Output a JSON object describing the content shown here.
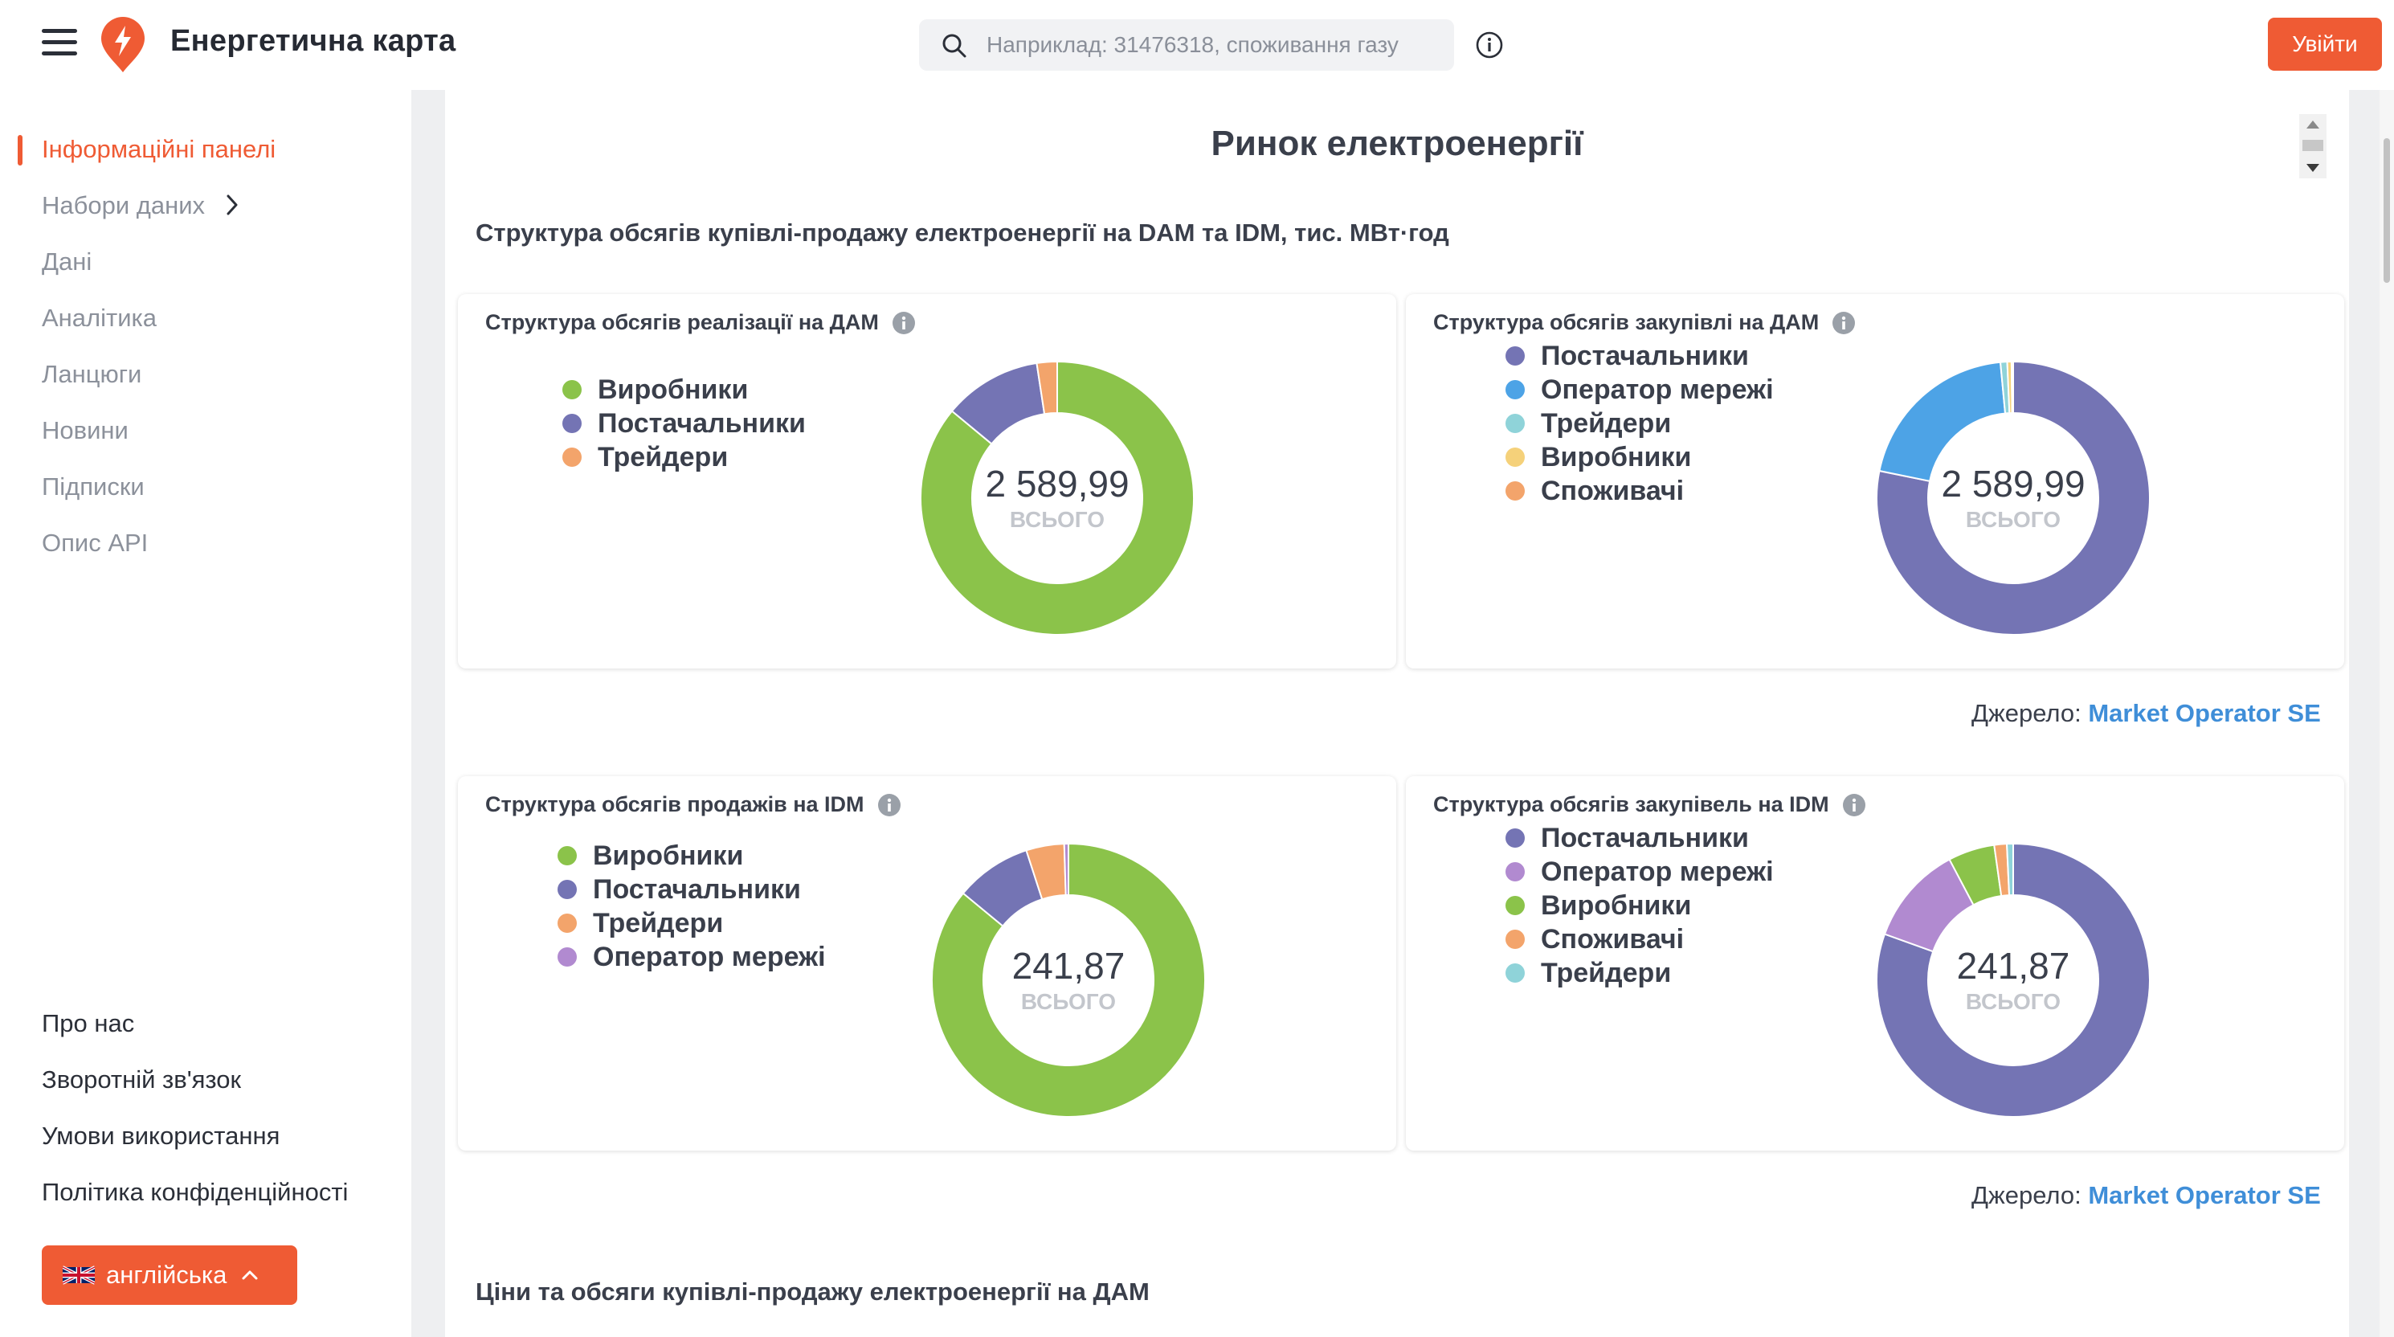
{
  "header": {
    "app_title": "Енергетична карта",
    "search_placeholder": "Наприклад: 31476318, споживання газу",
    "login_label": "Увійти",
    "brand_color": "#ef5b34"
  },
  "sidebar": {
    "nav": [
      {
        "label": "Інформаційні панелі",
        "active": true
      },
      {
        "label": "Набори даних",
        "has_submenu": true
      },
      {
        "label": "Дані"
      },
      {
        "label": "Аналітика"
      },
      {
        "label": "Ланцюги"
      },
      {
        "label": "Новини"
      },
      {
        "label": "Підписки"
      },
      {
        "label": "Опис API"
      }
    ],
    "footer": [
      {
        "label": "Про нас"
      },
      {
        "label": "Зворотній зв'язок"
      },
      {
        "label": "Умови використання"
      },
      {
        "label": "Політика конфіденційності"
      }
    ],
    "language": {
      "label": "англійська",
      "flag": "uk-flag-icon"
    }
  },
  "main": {
    "page_title": "Ринок електроенергії",
    "section1_title": "Структура обсягів купівлі-продажу електроенергії на DAM та IDM, тис. МВт·год",
    "section2_title": "Ціни та обсяги купівлі-продажу електроенергії на ДАМ",
    "source_label": "Джерело:",
    "source_link": "Market Operator SE",
    "total_label": "ВСЬОГО"
  },
  "chart_data": [
    {
      "type": "pie",
      "title": "Структура обсягів реалізації на ДАМ",
      "total": "2 589,99",
      "series": [
        {
          "name": "Виробники",
          "value": 2227.4,
          "color": "#8bc34a"
        },
        {
          "name": "Постачальники",
          "value": 300.4,
          "color": "#7474b4"
        },
        {
          "name": "Трейдери",
          "value": 62.2,
          "color": "#f3a46b"
        }
      ]
    },
    {
      "type": "pie",
      "title": "Структура обсягів закупівлі на ДАМ",
      "total": "2 589,99",
      "series": [
        {
          "name": "Постачальники",
          "value": 2025.4,
          "color": "#7474b4"
        },
        {
          "name": "Оператор мережі",
          "value": 525.8,
          "color": "#4da3e6"
        },
        {
          "name": "Трейдери",
          "value": 20.7,
          "color": "#8fd3d9"
        },
        {
          "name": "Виробники",
          "value": 13.0,
          "color": "#f5d17a"
        },
        {
          "name": "Споживачі",
          "value": 5.1,
          "color": "#f3a46b"
        }
      ]
    },
    {
      "type": "pie",
      "title": "Структура обсягів продажів на IDM",
      "total": "241,87",
      "series": [
        {
          "name": "Виробники",
          "value": 208.0,
          "color": "#8bc34a"
        },
        {
          "name": "Постачальники",
          "value": 21.8,
          "color": "#7474b4"
        },
        {
          "name": "Трейдери",
          "value": 10.9,
          "color": "#f3a46b"
        },
        {
          "name": "Оператор мережі",
          "value": 1.2,
          "color": "#b18ad0"
        }
      ]
    },
    {
      "type": "pie",
      "title": "Структура обсягів закупівель на IDM",
      "total": "241,87",
      "series": [
        {
          "name": "Постачальники",
          "value": 194.7,
          "color": "#7474b4"
        },
        {
          "name": "Оператор мережі",
          "value": 28.5,
          "color": "#b18ad0"
        },
        {
          "name": "Виробники",
          "value": 13.3,
          "color": "#8bc34a"
        },
        {
          "name": "Споживачі",
          "value": 3.6,
          "color": "#f3a46b"
        },
        {
          "name": "Трейдери",
          "value": 1.8,
          "color": "#8fd3d9"
        }
      ]
    }
  ]
}
